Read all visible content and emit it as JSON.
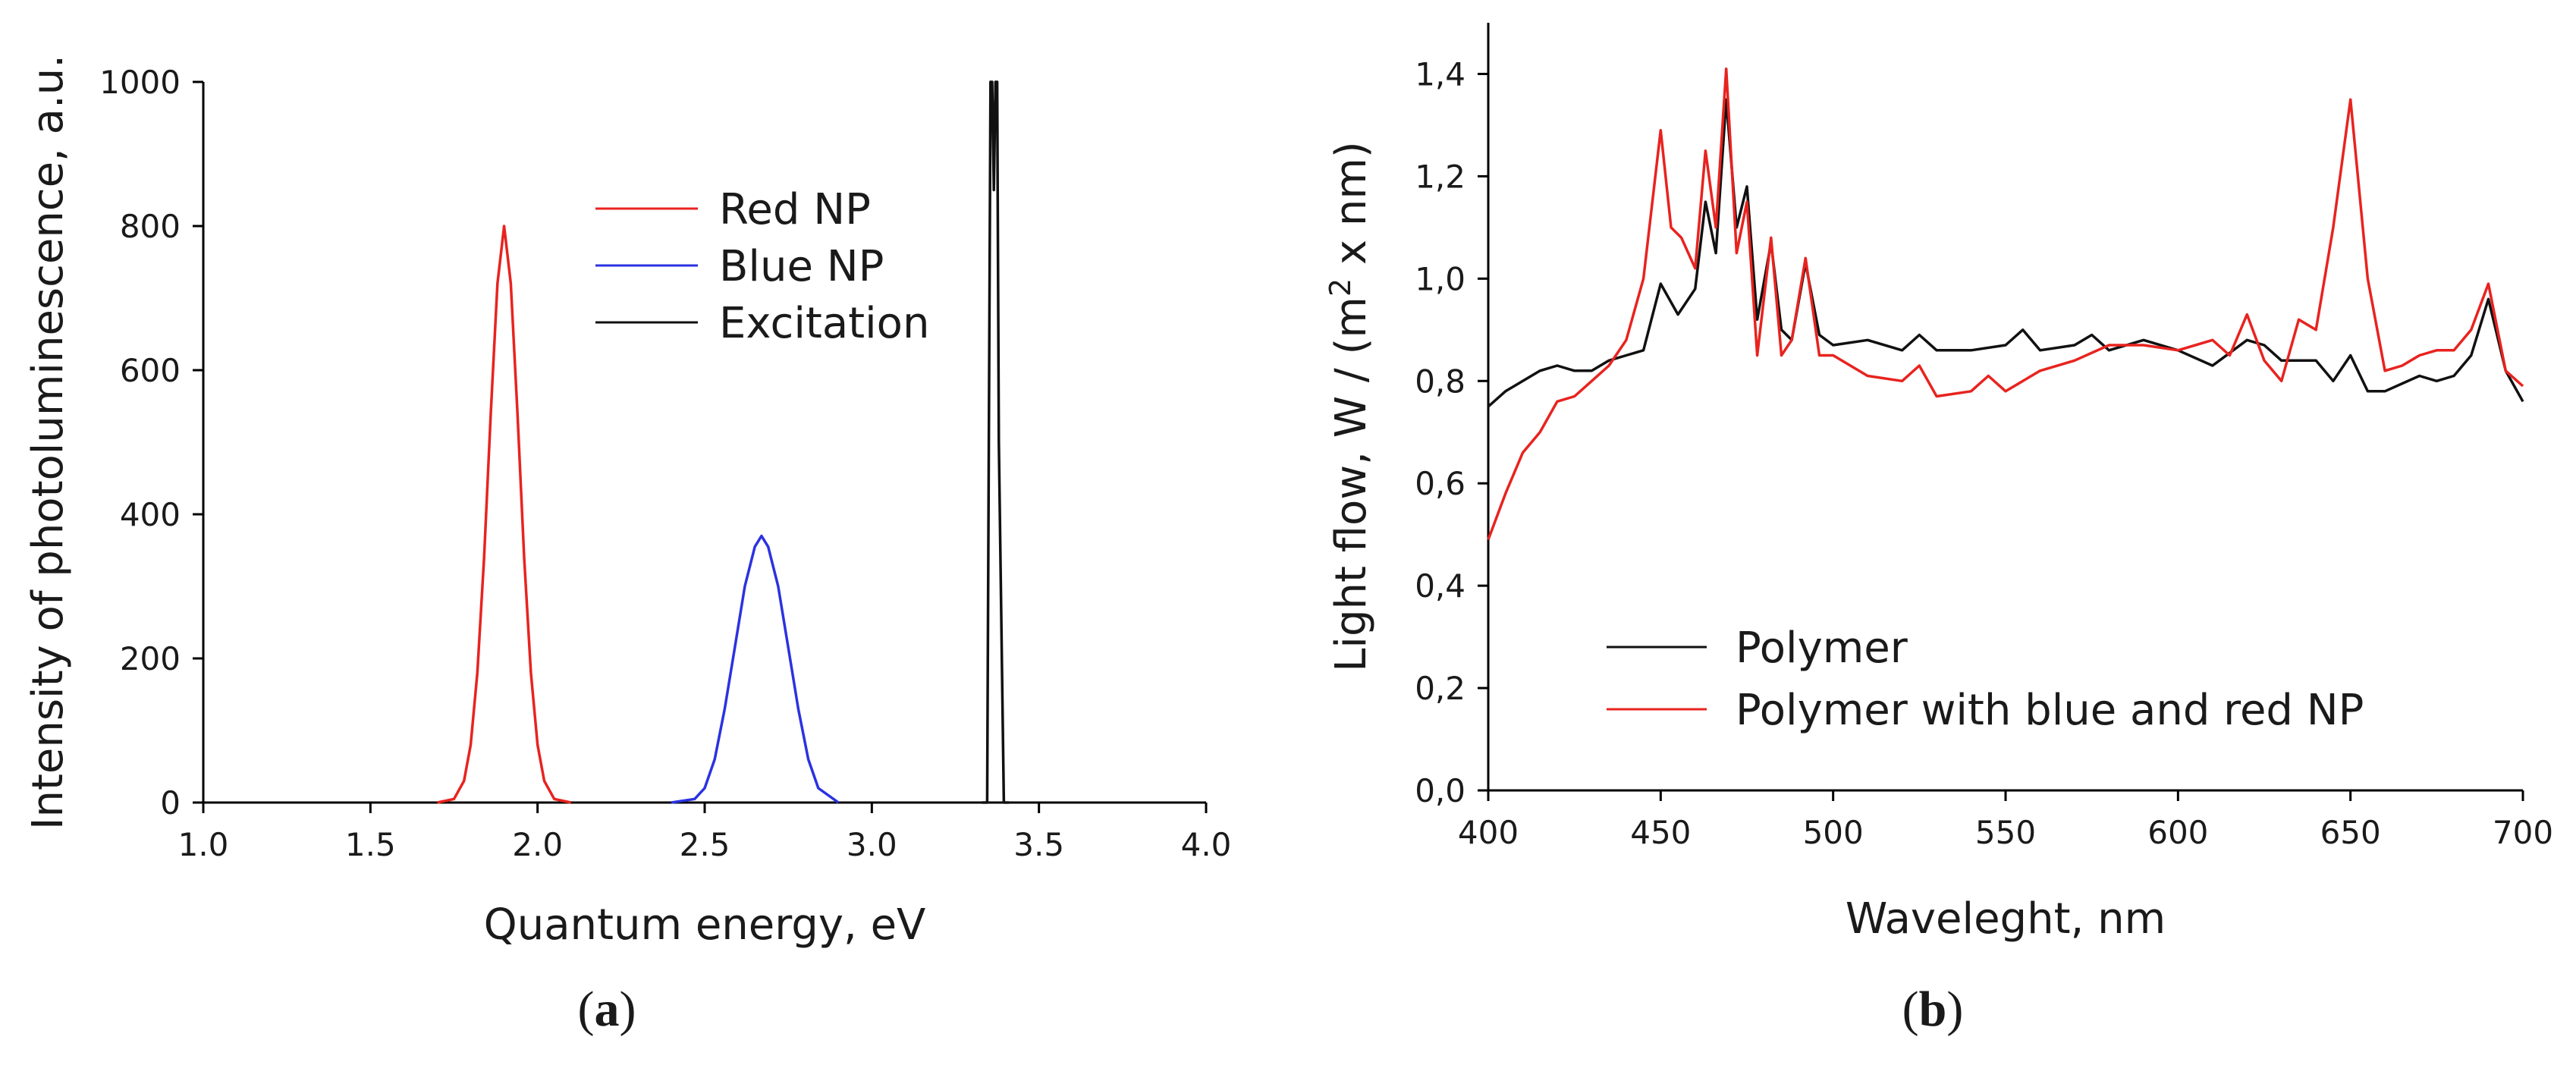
{
  "chart_data": [
    {
      "type": "line",
      "panel_label": {
        "open": "(",
        "letter": "a",
        "close": ")"
      },
      "xlabel": "Quantum energy, eV",
      "ylabel": "Intensity of photoluminescence, a.u.",
      "xlim": [
        1.0,
        4.0
      ],
      "ylim": [
        0,
        1000
      ],
      "xticks": [
        "1.0",
        "1.5",
        "2.0",
        "2.5",
        "3.0",
        "3.5",
        "4.0"
      ],
      "yticks": [
        "0",
        "200",
        "400",
        "600",
        "800",
        "1000"
      ],
      "grid": false,
      "legend_position": "upper-center",
      "series": [
        {
          "name": "Red NP",
          "color": "#e8231f",
          "x": [
            1.7,
            1.75,
            1.78,
            1.8,
            1.82,
            1.84,
            1.86,
            1.88,
            1.9,
            1.92,
            1.94,
            1.96,
            1.98,
            2.0,
            2.02,
            2.05,
            2.1
          ],
          "y": [
            0,
            5,
            30,
            80,
            180,
            340,
            540,
            720,
            800,
            720,
            540,
            340,
            180,
            80,
            30,
            5,
            0
          ]
        },
        {
          "name": "Blue NP",
          "color": "#2b32e0",
          "x": [
            2.4,
            2.47,
            2.5,
            2.53,
            2.56,
            2.59,
            2.62,
            2.65,
            2.67,
            2.69,
            2.72,
            2.75,
            2.78,
            2.81,
            2.84,
            2.9
          ],
          "y": [
            0,
            5,
            20,
            60,
            130,
            215,
            300,
            355,
            370,
            355,
            300,
            215,
            130,
            60,
            20,
            0
          ]
        },
        {
          "name": "Excitation",
          "color": "#111111",
          "x": [
            3.33,
            3.345,
            3.35,
            3.355,
            3.36,
            3.365,
            3.37,
            3.375,
            3.38,
            3.395,
            3.41
          ],
          "y": [
            0,
            0,
            500,
            1000,
            1000,
            850,
            1000,
            1000,
            500,
            0,
            0
          ]
        }
      ]
    },
    {
      "type": "line",
      "panel_label": {
        "open": "(",
        "letter": "b",
        "close": ")"
      },
      "xlabel": "Waveleght, nm",
      "ylabel_prefix": "Light flow, W / (m",
      "ylabel_sup": "2",
      "ylabel_suffix": " x nm)",
      "xlim": [
        400,
        700
      ],
      "ylim": [
        0.0,
        1.5
      ],
      "xticks": [
        "400",
        "450",
        "500",
        "550",
        "600",
        "650",
        "700"
      ],
      "yticks": [
        "0,0",
        "0,2",
        "0,4",
        "0,6",
        "0,8",
        "1,0",
        "1,2",
        "1,4"
      ],
      "grid": false,
      "legend_position": "lower-left",
      "series": [
        {
          "name": "Polymer",
          "color": "#111111",
          "x": [
            400,
            405,
            410,
            415,
            420,
            425,
            430,
            435,
            440,
            445,
            450,
            455,
            460,
            463,
            466,
            469,
            472,
            475,
            478,
            482,
            485,
            488,
            492,
            496,
            500,
            510,
            520,
            525,
            530,
            540,
            550,
            555,
            560,
            570,
            575,
            580,
            590,
            600,
            610,
            620,
            625,
            630,
            640,
            645,
            650,
            655,
            660,
            670,
            675,
            680,
            685,
            690,
            695,
            700
          ],
          "y": [
            0.75,
            0.78,
            0.8,
            0.82,
            0.83,
            0.82,
            0.82,
            0.84,
            0.85,
            0.86,
            0.99,
            0.93,
            0.98,
            1.15,
            1.05,
            1.35,
            1.1,
            1.18,
            0.92,
            1.07,
            0.9,
            0.88,
            1.03,
            0.89,
            0.87,
            0.88,
            0.86,
            0.89,
            0.86,
            0.86,
            0.87,
            0.9,
            0.86,
            0.87,
            0.89,
            0.86,
            0.88,
            0.86,
            0.83,
            0.88,
            0.87,
            0.84,
            0.84,
            0.8,
            0.85,
            0.78,
            0.78,
            0.81,
            0.8,
            0.81,
            0.85,
            0.96,
            0.82,
            0.76
          ]
        },
        {
          "name": "Polymer with blue and red NP",
          "color": "#e8231f",
          "x": [
            400,
            405,
            410,
            415,
            420,
            425,
            430,
            435,
            440,
            445,
            450,
            453,
            456,
            460,
            463,
            466,
            469,
            472,
            475,
            478,
            482,
            485,
            488,
            492,
            496,
            500,
            510,
            520,
            525,
            530,
            540,
            545,
            550,
            560,
            570,
            580,
            590,
            600,
            610,
            615,
            620,
            625,
            630,
            635,
            640,
            645,
            650,
            655,
            660,
            665,
            670,
            675,
            680,
            685,
            690,
            695,
            700
          ],
          "y": [
            0.49,
            0.58,
            0.66,
            0.7,
            0.76,
            0.77,
            0.8,
            0.83,
            0.88,
            1.0,
            1.29,
            1.1,
            1.08,
            1.02,
            1.25,
            1.1,
            1.41,
            1.05,
            1.15,
            0.85,
            1.08,
            0.85,
            0.88,
            1.04,
            0.85,
            0.85,
            0.81,
            0.8,
            0.83,
            0.77,
            0.78,
            0.81,
            0.78,
            0.82,
            0.84,
            0.87,
            0.87,
            0.86,
            0.88,
            0.85,
            0.93,
            0.84,
            0.8,
            0.92,
            0.9,
            1.1,
            1.35,
            1.0,
            0.82,
            0.83,
            0.85,
            0.86,
            0.86,
            0.9,
            0.99,
            0.82,
            0.79
          ]
        }
      ]
    }
  ]
}
